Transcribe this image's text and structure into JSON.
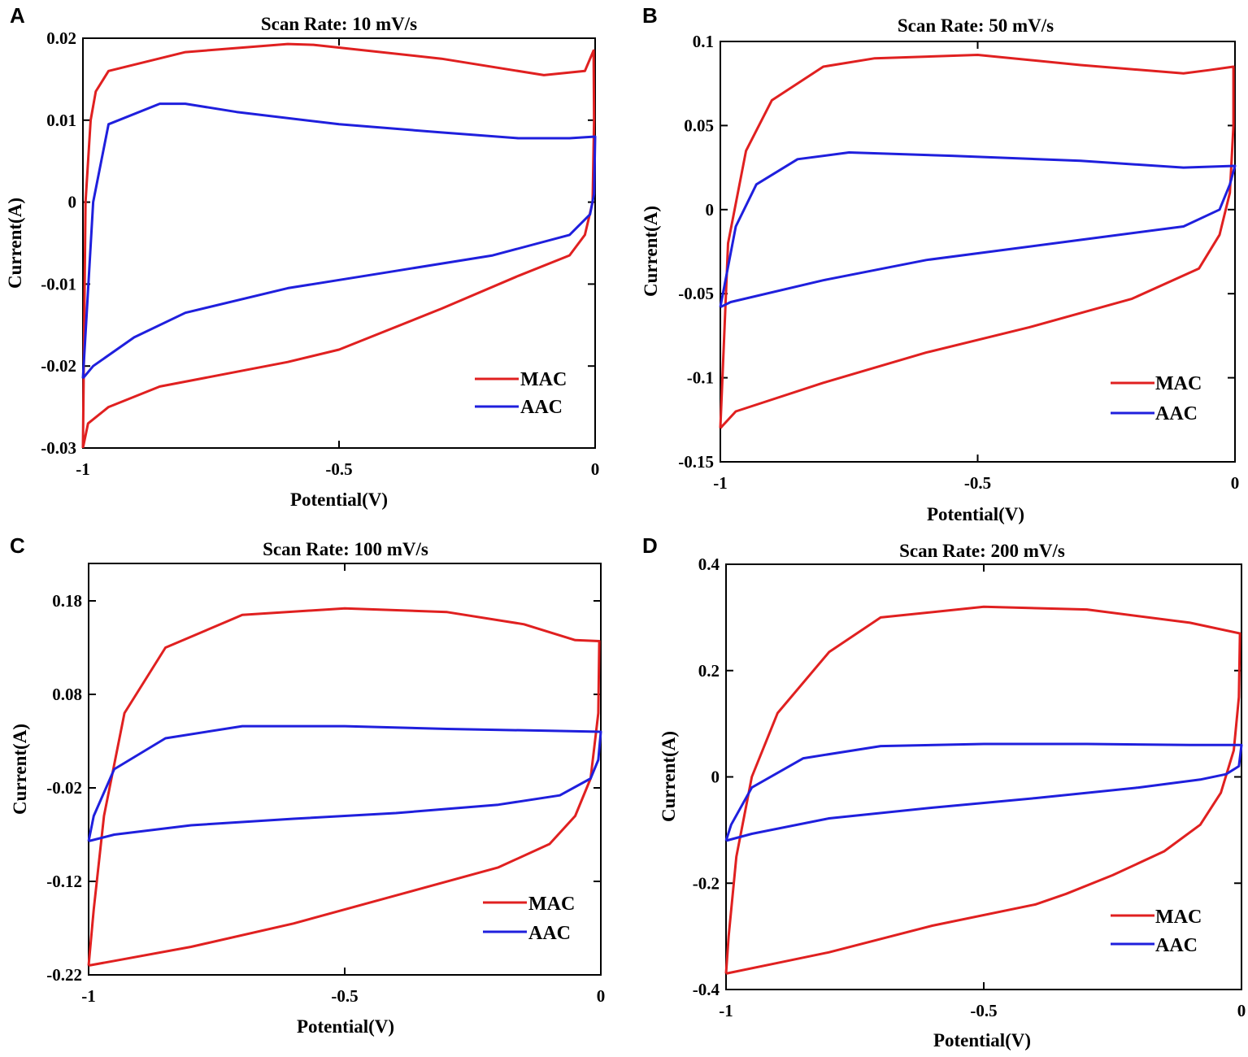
{
  "colors": {
    "mac": "#e02020",
    "aac": "#1f1fdd"
  },
  "chart_data": [
    {
      "panel": "A",
      "type": "line",
      "title": "Scan Rate: 10 mV/s",
      "xlabel": "Potential(V)",
      "ylabel": "Current(A)",
      "xlim": [
        -1,
        0
      ],
      "ylim": [
        -0.03,
        0.02
      ],
      "xticks": [
        -1,
        -0.5,
        0
      ],
      "xtick_labels": [
        "-1",
        "-0.5",
        "0"
      ],
      "yticks": [
        -0.03,
        -0.02,
        -0.01,
        0,
        0.01,
        0.02
      ],
      "ytick_labels": [
        "-0.03",
        "-0.02",
        "-0.01",
        "0",
        "0.01",
        "0.02"
      ],
      "legend_position": "bottom-right",
      "series": [
        {
          "name": "MAC",
          "color_key": "mac",
          "points": [
            [
              -1,
              -0.03
            ],
            [
              -0.99,
              -0.027
            ],
            [
              -0.95,
              -0.025
            ],
            [
              -0.85,
              -0.0225
            ],
            [
              -0.6,
              -0.0195
            ],
            [
              -0.5,
              -0.018
            ],
            [
              -0.3,
              -0.013
            ],
            [
              -0.15,
              -0.009
            ],
            [
              -0.05,
              -0.0065
            ],
            [
              -0.02,
              -0.004
            ],
            [
              -0.005,
              0.0
            ],
            [
              -0.002,
              0.01
            ],
            [
              -0.003,
              0.0185
            ],
            [
              -0.02,
              0.016
            ],
            [
              -0.1,
              0.0155
            ],
            [
              -0.3,
              0.0175
            ],
            [
              -0.55,
              0.0192
            ],
            [
              -0.6,
              0.0193
            ],
            [
              -0.8,
              0.0183
            ],
            [
              -0.95,
              0.016
            ],
            [
              -0.975,
              0.0135
            ],
            [
              -0.985,
              0.01
            ],
            [
              -0.995,
              0.0
            ],
            [
              -1,
              -0.03
            ]
          ]
        },
        {
          "name": "AAC",
          "color_key": "aac",
          "points": [
            [
              -1,
              -0.0215
            ],
            [
              -0.98,
              -0.02
            ],
            [
              -0.9,
              -0.0165
            ],
            [
              -0.8,
              -0.0135
            ],
            [
              -0.6,
              -0.0105
            ],
            [
              -0.4,
              -0.0085
            ],
            [
              -0.2,
              -0.0065
            ],
            [
              -0.05,
              -0.004
            ],
            [
              -0.01,
              -0.0015
            ],
            [
              -0.002,
              0.001
            ],
            [
              0,
              0.008
            ],
            [
              -0.05,
              0.0078
            ],
            [
              -0.15,
              0.0078
            ],
            [
              -0.3,
              0.0085
            ],
            [
              -0.5,
              0.0095
            ],
            [
              -0.7,
              0.011
            ],
            [
              -0.8,
              0.012
            ],
            [
              -0.85,
              0.012
            ],
            [
              -0.95,
              0.0095
            ],
            [
              -0.98,
              0.0
            ],
            [
              -1,
              -0.0215
            ]
          ]
        }
      ]
    },
    {
      "panel": "B",
      "type": "line",
      "title": "Scan Rate: 50 mV/s",
      "xlabel": "Potential(V)",
      "ylabel": "Current(A)",
      "xlim": [
        -1,
        0
      ],
      "ylim": [
        -0.15,
        0.1
      ],
      "xticks": [
        -1,
        -0.5,
        0
      ],
      "xtick_labels": [
        "-1",
        "-0.5",
        "0"
      ],
      "yticks": [
        -0.15,
        -0.1,
        -0.05,
        0,
        0.05,
        0.1
      ],
      "ytick_labels": [
        "-0.15",
        "-0.1",
        "-0.05",
        "0",
        "0.05",
        "0.1"
      ],
      "legend_position": "bottom-right",
      "series": [
        {
          "name": "MAC",
          "color_key": "mac",
          "points": [
            [
              -1,
              -0.13
            ],
            [
              -0.97,
              -0.12
            ],
            [
              -0.8,
              -0.103
            ],
            [
              -0.6,
              -0.085
            ],
            [
              -0.4,
              -0.07
            ],
            [
              -0.2,
              -0.053
            ],
            [
              -0.07,
              -0.035
            ],
            [
              -0.03,
              -0.015
            ],
            [
              -0.01,
              0.01
            ],
            [
              -0.003,
              0.05
            ],
            [
              -0.003,
              0.085
            ],
            [
              -0.05,
              0.083
            ],
            [
              -0.1,
              0.081
            ],
            [
              -0.3,
              0.086
            ],
            [
              -0.5,
              0.092
            ],
            [
              -0.7,
              0.09
            ],
            [
              -0.8,
              0.085
            ],
            [
              -0.9,
              0.065
            ],
            [
              -0.95,
              0.035
            ],
            [
              -0.985,
              -0.02
            ],
            [
              -1,
              -0.13
            ]
          ]
        },
        {
          "name": "AAC",
          "color_key": "aac",
          "points": [
            [
              -1,
              -0.058
            ],
            [
              -0.98,
              -0.055
            ],
            [
              -0.8,
              -0.042
            ],
            [
              -0.6,
              -0.03
            ],
            [
              -0.3,
              -0.018
            ],
            [
              -0.1,
              -0.01
            ],
            [
              -0.03,
              0.0
            ],
            [
              -0.01,
              0.015
            ],
            [
              0,
              0.026
            ],
            [
              -0.1,
              0.025
            ],
            [
              -0.3,
              0.029
            ],
            [
              -0.55,
              0.032
            ],
            [
              -0.75,
              0.034
            ],
            [
              -0.85,
              0.03
            ],
            [
              -0.93,
              0.015
            ],
            [
              -0.97,
              -0.01
            ],
            [
              -1,
              -0.058
            ]
          ]
        }
      ]
    },
    {
      "panel": "C",
      "type": "line",
      "title": "Scan Rate: 100 mV/s",
      "xlabel": "Potential(V)",
      "ylabel": "Current(A)",
      "xlim": [
        -1,
        0
      ],
      "ylim": [
        -0.22,
        0.22
      ],
      "xticks": [
        -1,
        -0.5,
        0
      ],
      "xtick_labels": [
        "-1",
        "-0.5",
        "0"
      ],
      "yticks": [
        -0.22,
        -0.12,
        -0.02,
        0.08,
        0.18
      ],
      "ytick_labels": [
        "-0.22",
        "-0.12",
        "-0.02",
        "0.08",
        "0.18"
      ],
      "legend_position": "bottom-right",
      "series": [
        {
          "name": "MAC",
          "color_key": "mac",
          "points": [
            [
              -1,
              -0.21
            ],
            [
              -0.95,
              -0.205
            ],
            [
              -0.8,
              -0.19
            ],
            [
              -0.6,
              -0.165
            ],
            [
              -0.4,
              -0.135
            ],
            [
              -0.2,
              -0.105
            ],
            [
              -0.1,
              -0.08
            ],
            [
              -0.05,
              -0.05
            ],
            [
              -0.02,
              -0.01
            ],
            [
              -0.005,
              0.06
            ],
            [
              -0.003,
              0.137
            ],
            [
              -0.05,
              0.138
            ],
            [
              -0.15,
              0.155
            ],
            [
              -0.3,
              0.168
            ],
            [
              -0.5,
              0.172
            ],
            [
              -0.7,
              0.165
            ],
            [
              -0.85,
              0.13
            ],
            [
              -0.93,
              0.06
            ],
            [
              -0.97,
              -0.05
            ],
            [
              -0.99,
              -0.15
            ],
            [
              -1,
              -0.21
            ]
          ]
        },
        {
          "name": "AAC",
          "color_key": "aac",
          "points": [
            [
              -1,
              -0.077
            ],
            [
              -0.95,
              -0.07
            ],
            [
              -0.8,
              -0.06
            ],
            [
              -0.6,
              -0.053
            ],
            [
              -0.4,
              -0.047
            ],
            [
              -0.2,
              -0.038
            ],
            [
              -0.08,
              -0.028
            ],
            [
              -0.02,
              -0.01
            ],
            [
              -0.005,
              0.01
            ],
            [
              0,
              0.04
            ],
            [
              -0.1,
              0.041
            ],
            [
              -0.3,
              0.043
            ],
            [
              -0.5,
              0.046
            ],
            [
              -0.7,
              0.046
            ],
            [
              -0.85,
              0.033
            ],
            [
              -0.95,
              0.0
            ],
            [
              -0.99,
              -0.05
            ],
            [
              -1,
              -0.077
            ]
          ]
        }
      ]
    },
    {
      "panel": "D",
      "type": "line",
      "title": "Scan Rate: 200 mV/s",
      "xlabel": "Potential(V)",
      "ylabel": "Current(A)",
      "xlim": [
        -1,
        0
      ],
      "ylim": [
        -0.4,
        0.4
      ],
      "xticks": [
        -1,
        -0.5,
        0
      ],
      "xtick_labels": [
        "-1",
        "-0.5",
        "0"
      ],
      "yticks": [
        -0.4,
        -0.2,
        0,
        0.2,
        0.4
      ],
      "ytick_labels": [
        "-0.4",
        "-0.2",
        "0",
        "0.2",
        "0.4"
      ],
      "legend_position": "bottom-right",
      "series": [
        {
          "name": "MAC",
          "color_key": "mac",
          "points": [
            [
              -1,
              -0.37
            ],
            [
              -0.9,
              -0.35
            ],
            [
              -0.8,
              -0.33
            ],
            [
              -0.6,
              -0.28
            ],
            [
              -0.4,
              -0.24
            ],
            [
              -0.34,
              -0.22
            ],
            [
              -0.25,
              -0.185
            ],
            [
              -0.15,
              -0.14
            ],
            [
              -0.08,
              -0.09
            ],
            [
              -0.04,
              -0.03
            ],
            [
              -0.015,
              0.05
            ],
            [
              -0.005,
              0.15
            ],
            [
              -0.003,
              0.27
            ],
            [
              -0.1,
              0.29
            ],
            [
              -0.3,
              0.315
            ],
            [
              -0.5,
              0.32
            ],
            [
              -0.7,
              0.3
            ],
            [
              -0.8,
              0.235
            ],
            [
              -0.9,
              0.12
            ],
            [
              -0.95,
              0.0
            ],
            [
              -0.98,
              -0.15
            ],
            [
              -0.995,
              -0.3
            ],
            [
              -1,
              -0.37
            ]
          ]
        },
        {
          "name": "AAC",
          "color_key": "aac",
          "points": [
            [
              -1,
              -0.12
            ],
            [
              -0.95,
              -0.107
            ],
            [
              -0.8,
              -0.078
            ],
            [
              -0.6,
              -0.058
            ],
            [
              -0.4,
              -0.04
            ],
            [
              -0.2,
              -0.02
            ],
            [
              -0.08,
              -0.005
            ],
            [
              -0.03,
              0.005
            ],
            [
              -0.005,
              0.02
            ],
            [
              0,
              0.06
            ],
            [
              -0.1,
              0.06
            ],
            [
              -0.3,
              0.062
            ],
            [
              -0.5,
              0.062
            ],
            [
              -0.7,
              0.058
            ],
            [
              -0.85,
              0.035
            ],
            [
              -0.95,
              -0.02
            ],
            [
              -0.99,
              -0.09
            ],
            [
              -1,
              -0.12
            ]
          ]
        }
      ]
    }
  ]
}
